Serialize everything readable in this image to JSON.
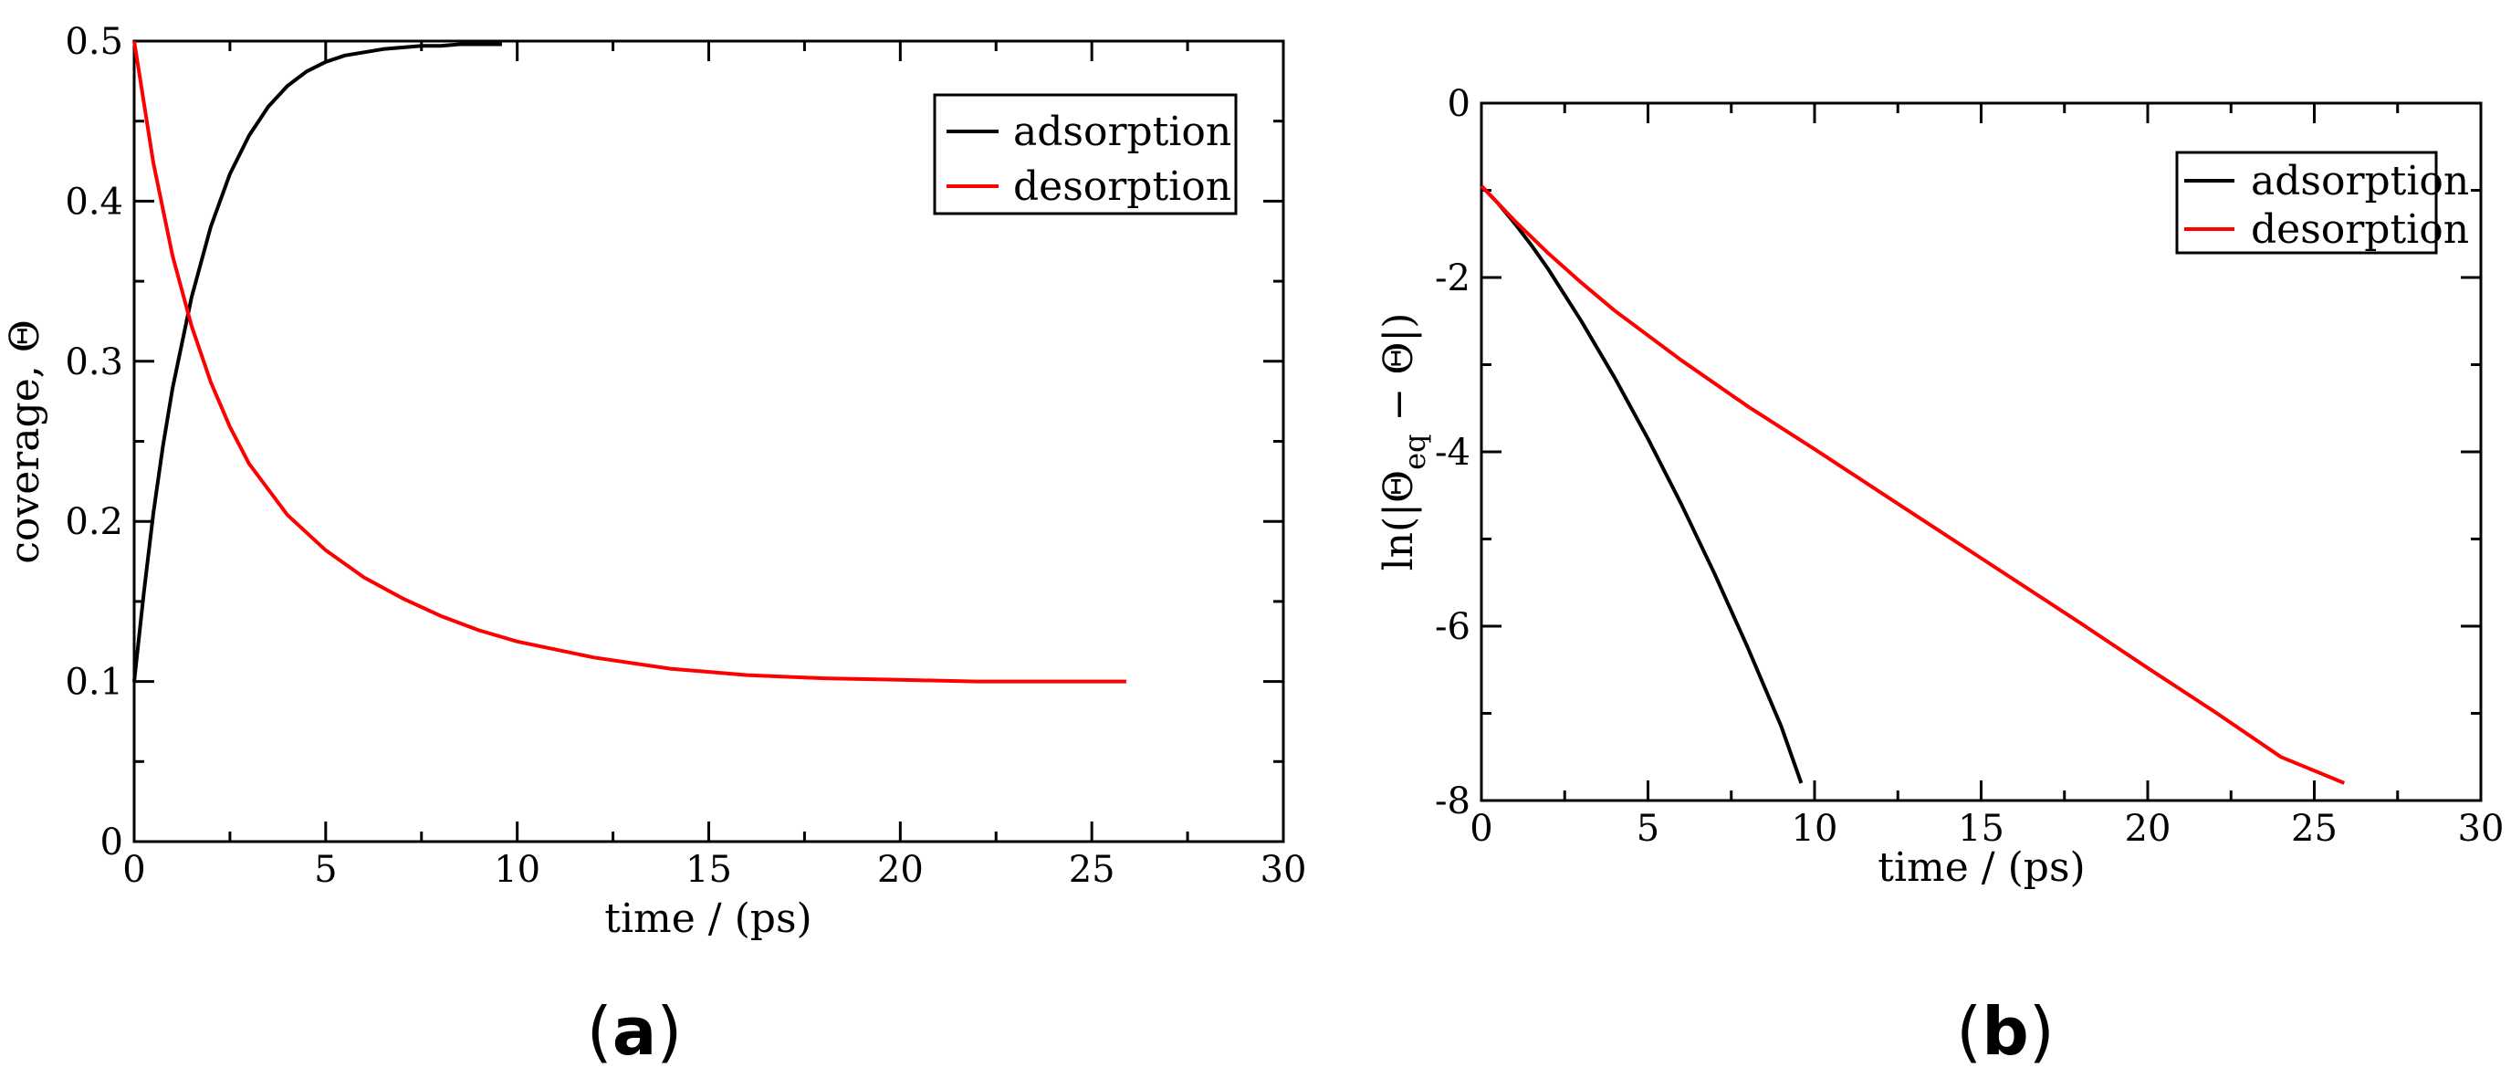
{
  "chart_data": [
    {
      "type": "line",
      "panel_label": "a",
      "title": "",
      "xlabel": "time / (ps)",
      "ylabel": "coverage, Θ",
      "xlim": [
        0,
        30
      ],
      "ylim": [
        0,
        0.5
      ],
      "xticks": [
        0,
        5,
        10,
        15,
        20,
        25,
        30
      ],
      "yticks": [
        0,
        0.1,
        0.2,
        0.3,
        0.4,
        0.5
      ],
      "xtick_labels": [
        "0",
        "5",
        "10",
        "15",
        "20",
        "25",
        "30"
      ],
      "ytick_labels": [
        "0",
        "0.1",
        "0.2",
        "0.3",
        "0.4",
        "0.5"
      ],
      "legend_position": "top-right",
      "series": [
        {
          "name": "adsorption",
          "color": "#000000",
          "x": [
            0,
            0.25,
            0.5,
            0.75,
            1,
            1.5,
            2,
            2.5,
            3,
            3.5,
            4,
            4.5,
            5,
            5.5,
            6,
            6.5,
            7,
            7.5,
            8,
            8.5,
            9,
            9.6
          ],
          "y": [
            0.1,
            0.155,
            0.205,
            0.247,
            0.283,
            0.34,
            0.384,
            0.417,
            0.441,
            0.459,
            0.472,
            0.481,
            0.487,
            0.491,
            0.493,
            0.495,
            0.496,
            0.497,
            0.497,
            0.498,
            0.498,
            0.498
          ]
        },
        {
          "name": "desorption",
          "color": "#ff0000",
          "x": [
            0,
            0.5,
            1,
            1.5,
            2,
            2.5,
            3,
            4,
            5,
            6,
            7,
            8,
            9,
            10,
            12,
            14,
            16,
            18,
            20,
            22,
            24,
            25.9
          ],
          "y": [
            0.5,
            0.424,
            0.366,
            0.322,
            0.287,
            0.259,
            0.236,
            0.204,
            0.182,
            0.165,
            0.152,
            0.141,
            0.132,
            0.125,
            0.115,
            0.108,
            0.104,
            0.102,
            0.101,
            0.1,
            0.1,
            0.1
          ]
        }
      ]
    },
    {
      "type": "line",
      "panel_label": "b",
      "title": "",
      "xlabel": "time / (ps)",
      "ylabel_parts": [
        "ln(|Θ",
        "eq",
        " − Θ|)"
      ],
      "xlim": [
        0,
        30
      ],
      "ylim": [
        -8,
        0
      ],
      "xticks": [
        0,
        5,
        10,
        15,
        20,
        25,
        30
      ],
      "yticks": [
        -8,
        -6,
        -4,
        -2,
        0
      ],
      "xtick_labels": [
        "0",
        "5",
        "10",
        "15",
        "20",
        "25",
        "30"
      ],
      "ytick_labels": [
        "-8",
        "-6",
        "-4",
        "-2",
        "0"
      ],
      "legend_position": "top-right",
      "series": [
        {
          "name": "adsorption",
          "color": "#000000",
          "x": [
            0,
            0.5,
            1,
            1.5,
            2,
            3,
            4,
            5,
            6,
            7,
            8,
            9,
            9.6
          ],
          "y": [
            -0.95,
            -1.15,
            -1.38,
            -1.63,
            -1.9,
            -2.5,
            -3.15,
            -3.85,
            -4.6,
            -5.4,
            -6.25,
            -7.15,
            -7.8
          ]
        },
        {
          "name": "desorption",
          "color": "#ff0000",
          "x": [
            0,
            1,
            2,
            3,
            4,
            6,
            8,
            10,
            12,
            15,
            18,
            20,
            22,
            24,
            25.9
          ],
          "y": [
            -0.95,
            -1.35,
            -1.72,
            -2.06,
            -2.38,
            -2.95,
            -3.48,
            -3.97,
            -4.47,
            -5.22,
            -5.97,
            -6.48,
            -6.98,
            -7.5,
            -7.8
          ]
        }
      ]
    }
  ]
}
